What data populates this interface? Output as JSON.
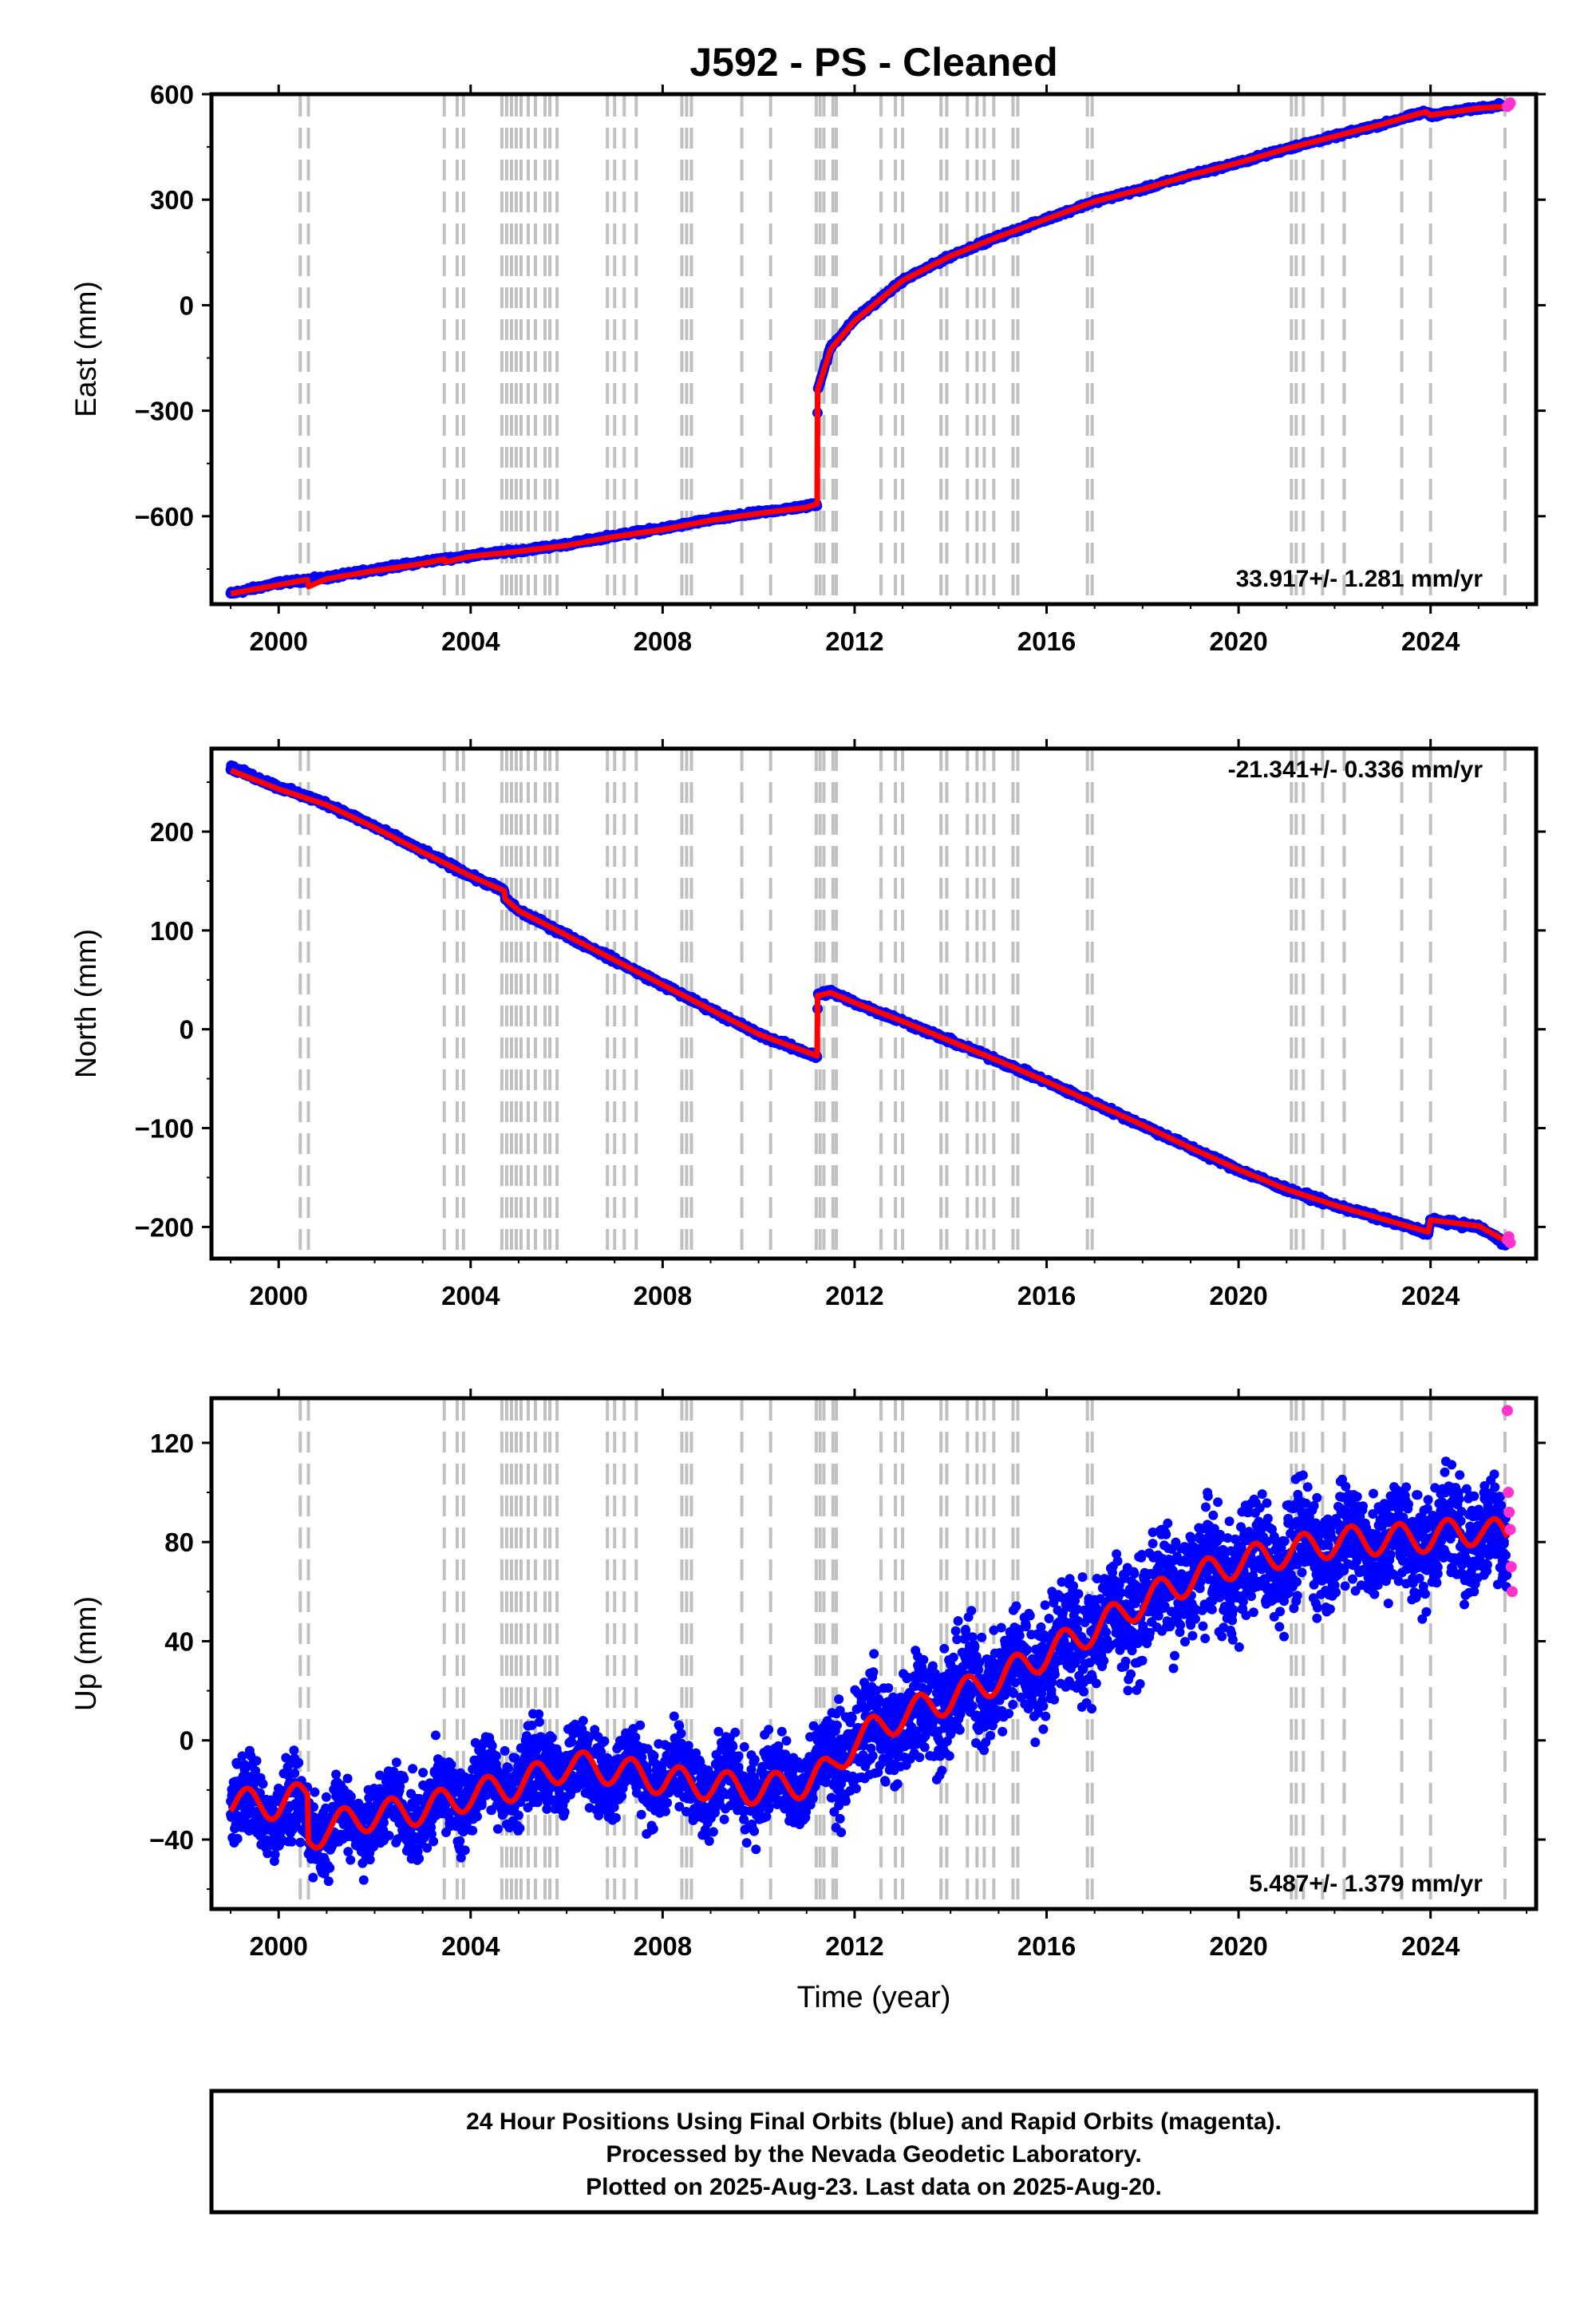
{
  "title": "J592  - PS - Cleaned",
  "x_axis_label": "Time (year)",
  "footer": {
    "line1": "24 Hour Positions Using Final Orbits (blue) and Rapid Orbits (magenta).",
    "line2": "Processed by the Nevada Geodetic Laboratory.",
    "line3": "Plotted on 2025-Aug-23. Last data on 2025-Aug-20."
  },
  "colors": {
    "final_orbits": "#0000ff",
    "rapid_orbits": "#ff33cc",
    "model": "#ff0000",
    "event_lines": "#c0c0c0"
  },
  "event_lines": [
    2000.45,
    2000.62,
    2003.45,
    2003.72,
    2003.85,
    2004.65,
    2004.75,
    2004.85,
    2004.95,
    2005.05,
    2005.2,
    2005.35,
    2005.55,
    2005.65,
    2005.8,
    2006.85,
    2007.0,
    2007.2,
    2007.45,
    2008.4,
    2008.5,
    2008.6,
    2009.65,
    2010.25,
    2011.2,
    2011.28,
    2011.36,
    2011.55,
    2011.62,
    2012.55,
    2012.85,
    2013.0,
    2013.8,
    2013.92,
    2014.35,
    2014.55,
    2014.7,
    2014.9,
    2015.3,
    2015.4,
    2016.85,
    2016.95,
    2021.1,
    2021.2,
    2021.35,
    2021.75,
    2022.2,
    2023.4,
    2024.0,
    2025.55
  ],
  "chart_data": [
    {
      "type": "scatter",
      "panel": "east",
      "ylabel": "East (mm)",
      "xlim": [
        1998.6,
        2026.2
      ],
      "ylim": [
        -850,
        600
      ],
      "xticks": [
        "2000",
        "2004",
        "2008",
        "2012",
        "2016",
        "2020",
        "2024"
      ],
      "yticks": [
        "600",
        "300",
        "0",
        "−300",
        "−600"
      ],
      "rate_label": "33.917+/- 1.281 mm/yr",
      "series": [
        {
          "name": "Final Orbits",
          "role": "final",
          "x": [
            1999.0,
            2000.0,
            2001.0,
            2002.0,
            2003.0,
            2004.0,
            2005.0,
            2006.0,
            2007.0,
            2008.0,
            2009.0,
            2010.0,
            2011.0,
            2011.22,
            2011.23,
            2011.5,
            2012.0,
            2013.0,
            2014.0,
            2015.0,
            2016.0,
            2017.0,
            2018.0,
            2019.0,
            2020.0,
            2021.0,
            2022.0,
            2023.0,
            2023.9,
            2024.0,
            2025.0,
            2025.5
          ],
          "y": [
            -820,
            -790,
            -775,
            -752,
            -730,
            -712,
            -698,
            -680,
            -655,
            -635,
            -610,
            -590,
            -572,
            -565,
            -240,
            -120,
            -40,
            70,
            140,
            195,
            245,
            295,
            330,
            370,
            405,
            445,
            480,
            515,
            550,
            540,
            560,
            570
          ],
          "spread": 6
        },
        {
          "name": "Rapid Orbits",
          "role": "rapid",
          "x": [
            2025.6,
            2025.63,
            2025.66
          ],
          "y": [
            565,
            568,
            575
          ]
        },
        {
          "name": "Model",
          "role": "model",
          "x": [
            1999.0,
            2000.0,
            2000.6,
            2000.62,
            2001.0,
            2002.0,
            2003.0,
            2003.45,
            2003.47,
            2004.0,
            2005.0,
            2006.0,
            2007.0,
            2008.0,
            2009.0,
            2010.0,
            2011.0,
            2011.22,
            2011.23,
            2011.5,
            2012.0,
            2013.0,
            2014.0,
            2015.0,
            2016.0,
            2017.0,
            2018.0,
            2019.0,
            2020.0,
            2021.0,
            2022.0,
            2023.0,
            2023.9,
            2024.0,
            2025.0,
            2025.6
          ],
          "y": [
            -820,
            -795,
            -780,
            -800,
            -778,
            -755,
            -735,
            -722,
            -730,
            -714,
            -700,
            -683,
            -658,
            -638,
            -612,
            -592,
            -575,
            -565,
            -240,
            -125,
            -45,
            70,
            140,
            195,
            245,
            295,
            330,
            370,
            405,
            445,
            480,
            515,
            550,
            540,
            560,
            565
          ]
        }
      ]
    },
    {
      "type": "scatter",
      "panel": "north",
      "ylabel": "North (mm)",
      "xlim": [
        1998.6,
        2026.2
      ],
      "ylim": [
        -232,
        284
      ],
      "xticks": [
        "2000",
        "2004",
        "2008",
        "2012",
        "2016",
        "2020",
        "2024"
      ],
      "yticks": [
        "200",
        "100",
        "0",
        "−100",
        "−200"
      ],
      "rate_label": "-21.341+/- 0.336 mm/yr",
      "series": [
        {
          "name": "Final Orbits",
          "role": "final",
          "x": [
            1999.0,
            2000.0,
            2001.0,
            2002.0,
            2003.0,
            2004.0,
            2004.7,
            2004.72,
            2005.0,
            2006.0,
            2007.0,
            2008.0,
            2009.0,
            2010.0,
            2011.22,
            2011.23,
            2011.5,
            2012.0,
            2013.0,
            2014.0,
            2015.0,
            2016.0,
            2017.0,
            2018.0,
            2019.0,
            2020.0,
            2021.0,
            2022.0,
            2023.0,
            2023.95,
            2024.0,
            2025.0,
            2025.6
          ],
          "y": [
            265,
            245,
            228,
            205,
            180,
            155,
            140,
            132,
            120,
            95,
            70,
            45,
            20,
            -5,
            -28,
            35,
            38,
            27,
            8,
            -12,
            -32,
            -53,
            -75,
            -97,
            -120,
            -142,
            -162,
            -178,
            -192,
            -206,
            -193,
            -200,
            -218
          ],
          "spread": 3
        },
        {
          "name": "Rapid Orbits",
          "role": "rapid",
          "x": [
            2025.6,
            2025.63,
            2025.66
          ],
          "y": [
            -213,
            -210,
            -216
          ]
        },
        {
          "name": "Model",
          "role": "model",
          "x": [
            1999.0,
            2000.0,
            2001.0,
            2002.0,
            2003.0,
            2004.0,
            2004.7,
            2004.72,
            2005.0,
            2006.0,
            2007.0,
            2008.0,
            2009.0,
            2010.0,
            2011.22,
            2011.23,
            2011.5,
            2012.0,
            2013.0,
            2014.0,
            2015.0,
            2016.0,
            2017.0,
            2018.0,
            2019.0,
            2020.0,
            2021.0,
            2022.0,
            2023.0,
            2023.95,
            2024.0,
            2025.0,
            2025.6
          ],
          "y": [
            262,
            243,
            227,
            204,
            179,
            155,
            140,
            132,
            120,
            95,
            70,
            45,
            20,
            -5,
            -27,
            34,
            37,
            27,
            8,
            -12,
            -32,
            -53,
            -75,
            -97,
            -120,
            -142,
            -162,
            -178,
            -192,
            -205,
            -193,
            -199,
            -215
          ]
        }
      ]
    },
    {
      "type": "scatter",
      "panel": "up",
      "ylabel": "Up (mm)",
      "xlabel": "Time (year)",
      "xlim": [
        1998.6,
        2026.2
      ],
      "ylim": [
        -68,
        138
      ],
      "xticks": [
        "2000",
        "2004",
        "2008",
        "2012",
        "2016",
        "2020",
        "2024"
      ],
      "yticks": [
        "120",
        "80",
        "40",
        "0",
        "−40"
      ],
      "rate_label": "5.487+/- 1.379 mm/yr",
      "series": [
        {
          "name": "Final Orbits",
          "role": "final",
          "x": [
            1999.0,
            2000.0,
            2001.0,
            2002.0,
            2003.0,
            2004.0,
            2005.0,
            2006.0,
            2007.0,
            2008.0,
            2009.0,
            2010.0,
            2011.0,
            2012.0,
            2013.0,
            2014.0,
            2015.0,
            2016.0,
            2017.0,
            2018.0,
            2019.0,
            2020.0,
            2021.0,
            2022.0,
            2023.0,
            2024.0,
            2025.0,
            2025.6
          ],
          "y": [
            -25,
            -28,
            -35,
            -30,
            -28,
            -20,
            -15,
            -10,
            -12,
            -15,
            -18,
            -18,
            -17,
            0,
            8,
            18,
            25,
            35,
            45,
            55,
            65,
            70,
            75,
            80,
            80,
            82,
            85,
            80
          ],
          "spread": 12
        },
        {
          "name": "Rapid Orbits",
          "role": "rapid",
          "x": [
            2025.6,
            2025.62,
            2025.64,
            2025.66,
            2025.68,
            2025.7
          ],
          "y": [
            133,
            100,
            92,
            85,
            70,
            60
          ]
        },
        {
          "name": "Model",
          "role": "model",
          "x": [
            1999.0,
            2000.0,
            2000.6,
            2000.62,
            2001.0,
            2002.0,
            2003.0,
            2004.0,
            2005.0,
            2006.0,
            2007.0,
            2008.0,
            2009.0,
            2010.0,
            2011.0,
            2011.5,
            2012.0,
            2013.0,
            2014.0,
            2015.0,
            2016.0,
            2017.0,
            2018.0,
            2019.0,
            2020.0,
            2021.0,
            2022.0,
            2023.0,
            2024.0,
            2025.0,
            2025.6
          ],
          "y": [
            -25,
            -26,
            -22,
            -40,
            -35,
            -30,
            -28,
            -22,
            -18,
            -10,
            -12,
            -16,
            -18,
            -20,
            -17,
            -12,
            0,
            10,
            17,
            25,
            35,
            45,
            56,
            65,
            72,
            76,
            80,
            81,
            82,
            85,
            82
          ],
          "seasonal": 6
        }
      ]
    }
  ]
}
